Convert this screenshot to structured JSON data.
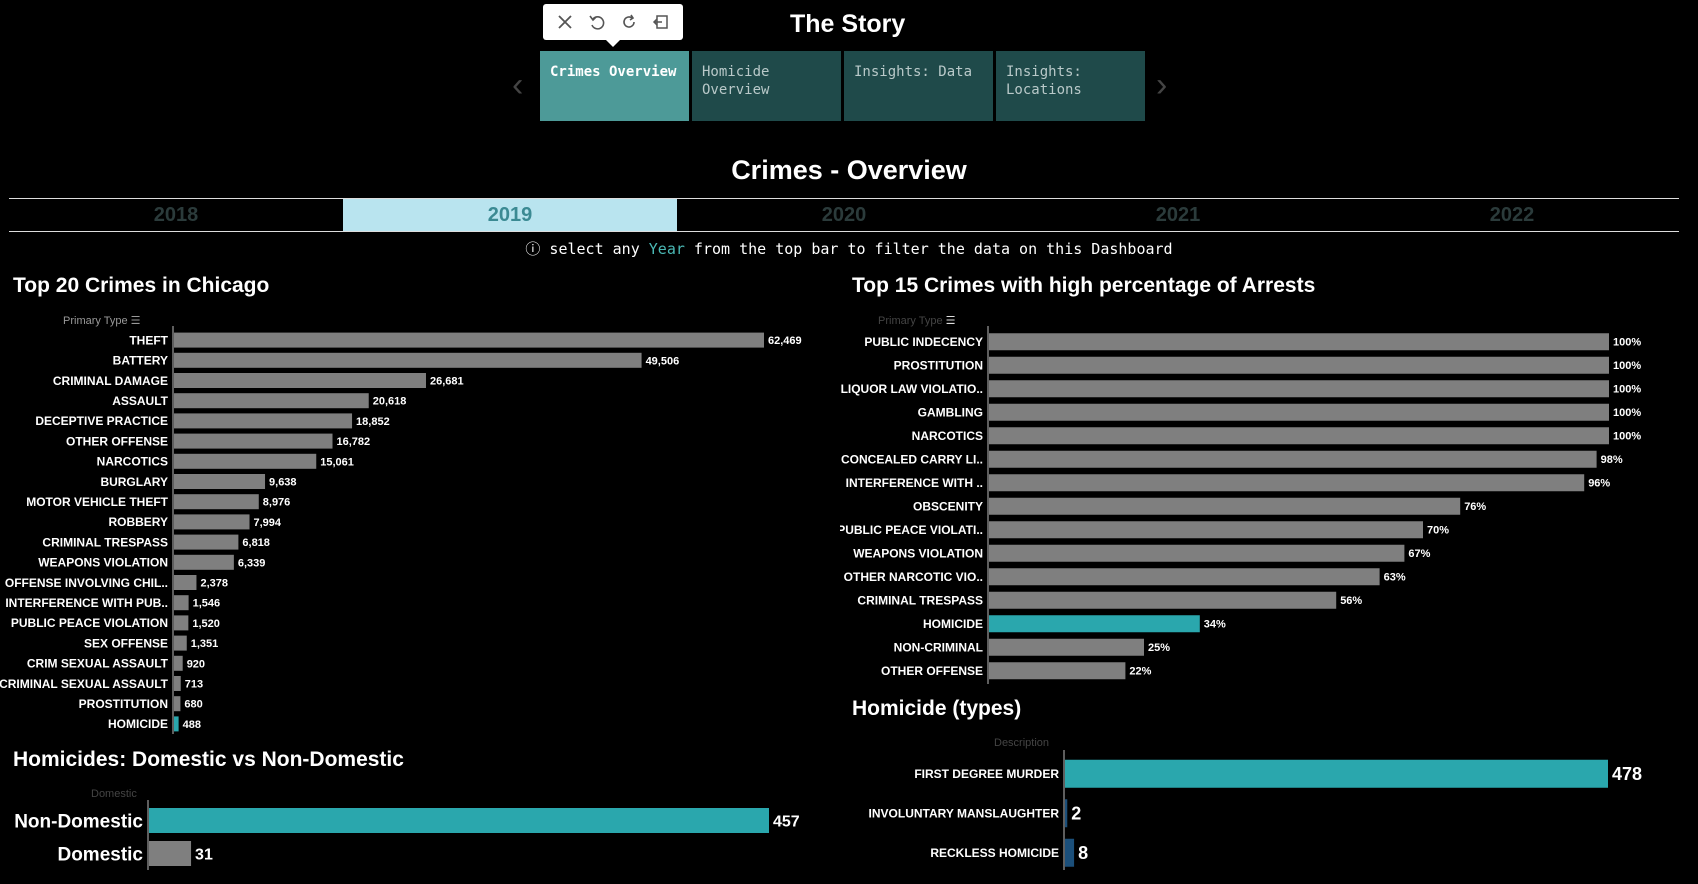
{
  "story": {
    "title": "The Story",
    "tabs": [
      {
        "label": "Crimes Overview",
        "active": true
      },
      {
        "label": "Homicide\nOverview",
        "active": false
      },
      {
        "label": "Insights: Data",
        "active": false
      },
      {
        "label": "Insights:\nLocations",
        "active": false
      }
    ]
  },
  "toolbar": {
    "icons": [
      "close-icon",
      "undo-icon",
      "refresh-icon",
      "exit-icon"
    ]
  },
  "dashboard": {
    "title": "Crimes - Overview",
    "years": [
      "2018",
      "2019",
      "2020",
      "2021",
      "2022"
    ],
    "selected_year": "2019",
    "hint_prefix": "ⓘ select any ",
    "hint_year": "Year",
    "hint_suffix": " from the top bar to filter the data on this Dashboard"
  },
  "colors": {
    "bar": "#7f7f7f",
    "highlight": "#2aa7ad",
    "dark_highlight": "#1b4f7a"
  },
  "chart_data": [
    {
      "id": "top20",
      "type": "bar",
      "orientation": "horizontal",
      "title": "Top 20 Crimes in Chicago",
      "field_label": "Primary Type",
      "categories": [
        "THEFT",
        "BATTERY",
        "CRIMINAL DAMAGE",
        "ASSAULT",
        "DECEPTIVE PRACTICE",
        "OTHER OFFENSE",
        "NARCOTICS",
        "BURGLARY",
        "MOTOR VEHICLE THEFT",
        "ROBBERY",
        "CRIMINAL TRESPASS",
        "WEAPONS VIOLATION",
        "OFFENSE INVOLVING CHIL..",
        "INTERFERENCE WITH PUB..",
        "PUBLIC PEACE VIOLATION",
        "SEX OFFENSE",
        "CRIM SEXUAL ASSAULT",
        "CRIMINAL SEXUAL ASSAULT",
        "PROSTITUTION",
        "HOMICIDE"
      ],
      "values": [
        62469,
        49506,
        26681,
        20618,
        18852,
        16782,
        15061,
        9638,
        8976,
        7994,
        6818,
        6339,
        2378,
        1546,
        1520,
        1351,
        920,
        713,
        680,
        488
      ],
      "labels": [
        "62,469",
        "49,506",
        "26,681",
        "20,618",
        "18,852",
        "16,782",
        "15,061",
        "9,638",
        "8,976",
        "7,994",
        "6,818",
        "6,339",
        "2,378",
        "1,546",
        "1,520",
        "1,351",
        "920",
        "713",
        "680",
        "488"
      ],
      "highlight": [
        "HOMICIDE"
      ],
      "xlim": [
        0,
        62469
      ]
    },
    {
      "id": "arrests",
      "type": "bar",
      "orientation": "horizontal",
      "title": "Top 15 Crimes with high percentage of Arrests",
      "field_label": "Primary Type",
      "categories": [
        "PUBLIC INDECENCY",
        "PROSTITUTION",
        "LIQUOR LAW VIOLATIO..",
        "GAMBLING",
        "NARCOTICS",
        "CONCEALED CARRY LI..",
        "INTERFERENCE WITH ..",
        "OBSCENITY",
        "PUBLIC PEACE VIOLATI..",
        "WEAPONS VIOLATION",
        "OTHER NARCOTIC VIO..",
        "CRIMINAL TRESPASS",
        "HOMICIDE",
        "NON-CRIMINAL",
        "OTHER OFFENSE"
      ],
      "values": [
        100,
        100,
        100,
        100,
        100,
        98,
        96,
        76,
        70,
        67,
        63,
        56,
        34,
        25,
        22
      ],
      "labels": [
        "100%",
        "100%",
        "100%",
        "100%",
        "100%",
        "98%",
        "96%",
        "76%",
        "70%",
        "67%",
        "63%",
        "56%",
        "34%",
        "25%",
        "22%"
      ],
      "highlight": [
        "HOMICIDE"
      ],
      "unit": "%",
      "xlim": [
        0,
        100
      ]
    },
    {
      "id": "domestic",
      "type": "bar",
      "orientation": "horizontal",
      "title": "Homicides: Domestic vs Non-Domestic",
      "field_label": "Domestic",
      "categories": [
        "Non-Domestic",
        "Domestic"
      ],
      "values": [
        457,
        31
      ],
      "labels": [
        "457",
        "31"
      ],
      "highlight": [
        "Non-Domestic"
      ],
      "xlim": [
        0,
        457
      ]
    },
    {
      "id": "homicide_types",
      "type": "bar",
      "orientation": "horizontal",
      "title": "Homicide (types)",
      "field_label": "Description",
      "categories": [
        "FIRST DEGREE MURDER",
        "INVOLUNTARY MANSLAUGHTER",
        "RECKLESS HOMICIDE"
      ],
      "values": [
        478,
        2,
        8
      ],
      "labels": [
        "478",
        "2",
        "8"
      ],
      "highlight": [
        "FIRST DEGREE MURDER"
      ],
      "dark_highlight": [
        "INVOLUNTARY MANSLAUGHTER",
        "RECKLESS HOMICIDE"
      ],
      "xlim": [
        0,
        478
      ]
    }
  ]
}
